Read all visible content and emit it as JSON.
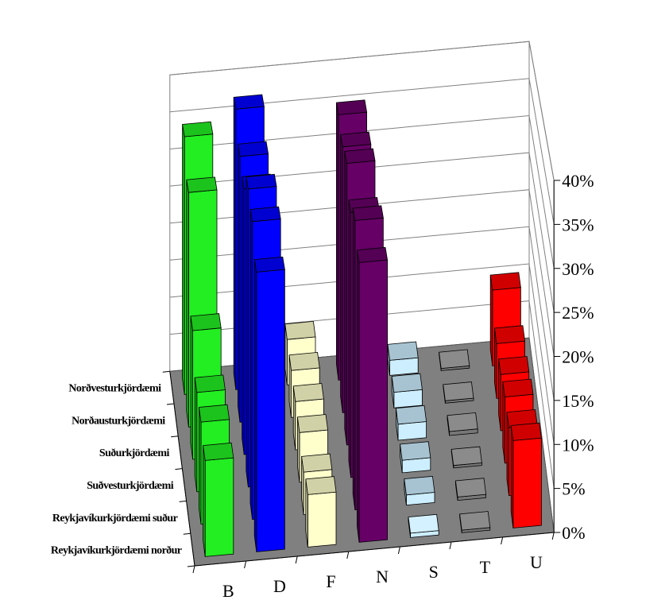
{
  "chart_data": {
    "type": "bar",
    "subtype": "3d-column",
    "categories": [
      "B",
      "D",
      "F",
      "N",
      "S",
      "T",
      "U"
    ],
    "series": [
      {
        "name": "Reykjavíkurkjördæmi norður",
        "values": [
          11,
          32,
          6,
          32,
          0.5,
          0.3,
          10
        ]
      },
      {
        "name": "Reykjavíkurkjördæmi suður",
        "values": [
          12,
          35,
          5,
          34,
          1.2,
          0.4,
          8
        ]
      },
      {
        "name": "Suðvesturkjördæmi",
        "values": [
          12,
          36,
          6,
          32,
          1.5,
          0.3,
          8
        ]
      },
      {
        "name": "Suðurkjördæmi",
        "values": [
          16,
          33,
          6,
          35,
          2,
          0.5,
          7
        ]
      },
      {
        "name": "Norðausturkjördæmi",
        "values": [
          30,
          34,
          6,
          34,
          2,
          0.3,
          7
        ]
      },
      {
        "name": "Norðvesturkjördæmi",
        "values": [
          34,
          37,
          6,
          35,
          2,
          0.3,
          10
        ]
      }
    ],
    "colors": {
      "B": "#22ee22",
      "D": "#0000ff",
      "F": "#ffffcc",
      "N": "#660066",
      "S": "#cceeff",
      "T": "#777777",
      "U": "#ff0000"
    },
    "floor_color": "#808080",
    "ylim": [
      0,
      40
    ],
    "yticks": [
      "0%",
      "5%",
      "10%",
      "15%",
      "20%",
      "25%",
      "30%",
      "35%",
      "40%"
    ],
    "grid": true,
    "title": "",
    "xlabel": "",
    "ylabel": ""
  }
}
